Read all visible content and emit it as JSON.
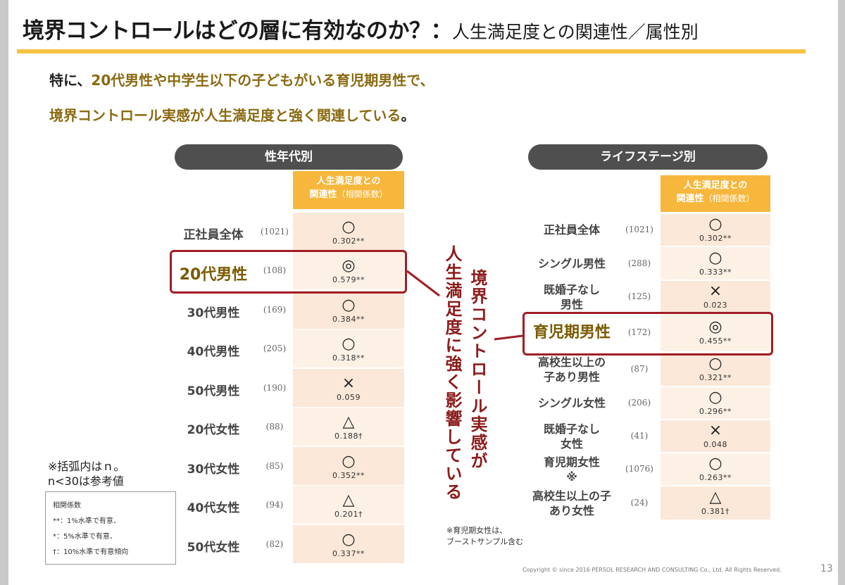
{
  "title": {
    "main": "境界コントロールはどの層に有効なのか？：",
    "sub": "人生満足度との関連性／属性別"
  },
  "lead": {
    "line1_a": "特に、",
    "line1_b": "20代男性や中学生以下の子どもがいる育児期男性で、",
    "line2_a": "境界コントロール実感が人生満足度と強く関連している",
    "line2_b": "。"
  },
  "left_panel": {
    "header": "性年代別",
    "col_head_l1": "人生満足度との",
    "col_head_l2_a": "関連性",
    "col_head_l2_b": "（相関係数）",
    "rows": [
      {
        "label": "正社員全体",
        "n": "(1021)",
        "sym": "○",
        "coef": "0.302**"
      },
      {
        "label": "20代男性",
        "n": "(108)",
        "sym": "◎",
        "coef": "0.579**"
      },
      {
        "label": "30代男性",
        "n": "(169)",
        "sym": "○",
        "coef": "0.384**"
      },
      {
        "label": "40代男性",
        "n": "(205)",
        "sym": "○",
        "coef": "0.318**"
      },
      {
        "label": "50代男性",
        "n": "(190)",
        "sym": "×",
        "coef": "0.059"
      },
      {
        "label": "20代女性",
        "n": "(88)",
        "sym": "△",
        "coef": "0.188†"
      },
      {
        "label": "30代女性",
        "n": "(85)",
        "sym": "○",
        "coef": "0.352**"
      },
      {
        "label": "40代女性",
        "n": "(94)",
        "sym": "△",
        "coef": "0.201†"
      },
      {
        "label": "50代女性",
        "n": "(82)",
        "sym": "○",
        "coef": "0.337**"
      }
    ]
  },
  "right_panel": {
    "header": "ライフステージ別",
    "col_head_l1": "人生満足度との",
    "col_head_l2_a": "関連性",
    "col_head_l2_b": "（相関係数）",
    "rows": [
      {
        "label1": "正社員全体",
        "label2": "",
        "n": "(1021)",
        "sym": "○",
        "coef": "0.302**"
      },
      {
        "label1": "シングル男性",
        "label2": "",
        "n": "(288)",
        "sym": "○",
        "coef": "0.333**"
      },
      {
        "label1": "既婚子なし",
        "label2": "男性",
        "n": "(125)",
        "sym": "×",
        "coef": "0.023"
      },
      {
        "label1": "育児期男性",
        "label2": "",
        "n": "(172)",
        "sym": "◎",
        "coef": "0.455**"
      },
      {
        "label1": "高校生以上の",
        "label2": "子あり男性",
        "n": "(87)",
        "sym": "○",
        "coef": "0.321**"
      },
      {
        "label1": "シングル女性",
        "label2": "",
        "n": "(206)",
        "sym": "○",
        "coef": "0.296**"
      },
      {
        "label1": "既婚子なし",
        "label2": "女性",
        "n": "(41)",
        "sym": "×",
        "coef": "0.048"
      },
      {
        "label1": "育児期女性",
        "label2": "※",
        "n": "(1076)",
        "sym": "○",
        "coef": "0.263**"
      },
      {
        "label1": "高校生以上の子",
        "label2": "あり女性",
        "n": "(24)",
        "sym": "△",
        "coef": "0.381†"
      }
    ]
  },
  "callout": {
    "col1": "境界コントロール実感が",
    "col2": "人生満足度に強く影響している"
  },
  "note_n": {
    "line1": "※括弧内はｎ。",
    "line2": "n<30は参考値"
  },
  "legend": {
    "title": "相関係数",
    "l1": "**：1%水準で有意、",
    "l2": "*：5%水準で有意、",
    "l3": "†：10%水準で有意傾向"
  },
  "note_right": {
    "line1": "※育児期女性は、",
    "line2": "ブーストサンプル含む"
  },
  "copyright": "Copyright © since 2016 PERSOL RESEARCH AND CONSULTING Co., Ltd. All Rights Reserved.",
  "page_number": "13",
  "colors": {
    "accent_bar": "#f6c342",
    "column_header": "#f6b73c",
    "highlight": "#a11d26",
    "callout_text": "#8c1b1b",
    "pill": "#4f4f4f"
  }
}
